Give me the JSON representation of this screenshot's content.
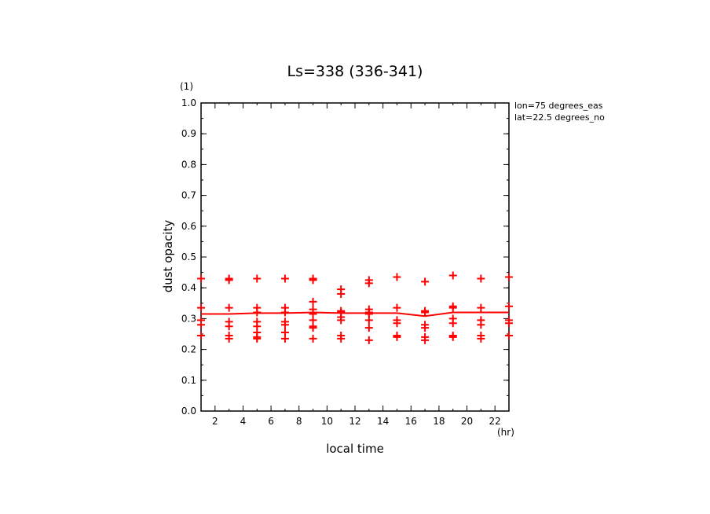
{
  "chart_data": {
    "type": "scatter",
    "title": "Ls=338 (336-341)",
    "xlabel": "local time",
    "ylabel": "dust opacity",
    "x_unit": "(hr)",
    "y_unit": "(1)",
    "xlim": [
      1,
      23
    ],
    "ylim": [
      0.0,
      1.0
    ],
    "x_ticks": [
      "2",
      "4",
      "6",
      "8",
      "10",
      "12",
      "14",
      "16",
      "18",
      "20",
      "22"
    ],
    "y_ticks": [
      "0.0",
      "0.1",
      "0.2",
      "0.3",
      "0.4",
      "0.5",
      "0.6",
      "0.7",
      "0.8",
      "0.9",
      "1.0"
    ],
    "annotations": [
      "lon=75 degrees_eas",
      "lat=22.5 degrees_no"
    ],
    "color": "#ff0000",
    "points": [
      [
        1,
        0.43
      ],
      [
        1,
        0.335
      ],
      [
        1,
        0.295
      ],
      [
        1,
        0.28
      ],
      [
        1,
        0.245
      ],
      [
        3,
        0.43
      ],
      [
        3,
        0.425
      ],
      [
        3,
        0.335
      ],
      [
        3,
        0.29
      ],
      [
        3,
        0.275
      ],
      [
        3,
        0.245
      ],
      [
        3,
        0.235
      ],
      [
        5,
        0.43
      ],
      [
        5,
        0.335
      ],
      [
        5,
        0.32
      ],
      [
        5,
        0.29
      ],
      [
        5,
        0.275
      ],
      [
        5,
        0.255
      ],
      [
        5,
        0.24
      ],
      [
        5,
        0.235
      ],
      [
        7,
        0.43
      ],
      [
        7,
        0.335
      ],
      [
        7,
        0.32
      ],
      [
        7,
        0.29
      ],
      [
        7,
        0.28
      ],
      [
        7,
        0.255
      ],
      [
        7,
        0.235
      ],
      [
        9,
        0.43
      ],
      [
        9,
        0.425
      ],
      [
        9,
        0.355
      ],
      [
        9,
        0.33
      ],
      [
        9,
        0.315
      ],
      [
        9,
        0.295
      ],
      [
        9,
        0.275
      ],
      [
        9,
        0.27
      ],
      [
        9,
        0.235
      ],
      [
        11,
        0.395
      ],
      [
        11,
        0.38
      ],
      [
        11,
        0.325
      ],
      [
        11,
        0.32
      ],
      [
        11,
        0.305
      ],
      [
        11,
        0.295
      ],
      [
        11,
        0.245
      ],
      [
        11,
        0.235
      ],
      [
        13,
        0.425
      ],
      [
        13,
        0.415
      ],
      [
        13,
        0.33
      ],
      [
        13,
        0.32
      ],
      [
        13,
        0.315
      ],
      [
        13,
        0.295
      ],
      [
        13,
        0.27
      ],
      [
        13,
        0.23
      ],
      [
        15,
        0.435
      ],
      [
        15,
        0.335
      ],
      [
        15,
        0.295
      ],
      [
        15,
        0.285
      ],
      [
        15,
        0.245
      ],
      [
        15,
        0.24
      ],
      [
        17,
        0.42
      ],
      [
        17,
        0.325
      ],
      [
        17,
        0.32
      ],
      [
        17,
        0.28
      ],
      [
        17,
        0.27
      ],
      [
        17,
        0.24
      ],
      [
        17,
        0.23
      ],
      [
        19,
        0.44
      ],
      [
        19,
        0.34
      ],
      [
        19,
        0.335
      ],
      [
        19,
        0.3
      ],
      [
        19,
        0.285
      ],
      [
        19,
        0.245
      ],
      [
        19,
        0.24
      ],
      [
        21,
        0.43
      ],
      [
        21,
        0.335
      ],
      [
        21,
        0.295
      ],
      [
        21,
        0.28
      ],
      [
        21,
        0.245
      ],
      [
        21,
        0.235
      ],
      [
        23,
        0.435
      ],
      [
        23,
        0.34
      ],
      [
        23,
        0.295
      ],
      [
        23,
        0.285
      ],
      [
        23,
        0.245
      ]
    ],
    "mean_line": {
      "x": [
        1,
        3,
        5,
        7,
        9,
        11,
        13,
        15,
        17,
        19,
        21,
        23
      ],
      "y": [
        0.315,
        0.315,
        0.318,
        0.318,
        0.32,
        0.318,
        0.318,
        0.318,
        0.308,
        0.32,
        0.32,
        0.32
      ]
    }
  }
}
